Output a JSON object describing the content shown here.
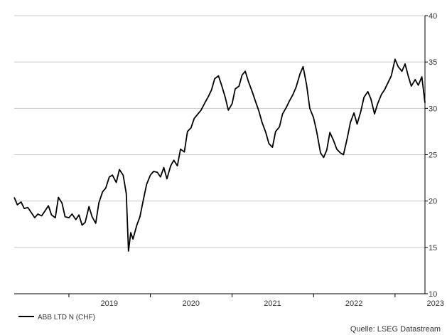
{
  "chart_data": {
    "type": "line",
    "title": "",
    "xlabel": "",
    "ylabel": "",
    "x_range": [
      "2018-05-01",
      "2023-05-15"
    ],
    "ylim": [
      10,
      40
    ],
    "y_ticks": [
      10,
      15,
      20,
      25,
      30,
      35,
      40
    ],
    "x_tick_labels": [
      "2019",
      "2020",
      "2021",
      "2022",
      "2023"
    ],
    "grid": true,
    "legend_position": "bottom-left",
    "source": "Quelle: LSEG Datastream",
    "colors": {
      "line": "#000000",
      "grid": "#c8c8c8",
      "axis": "#000000"
    },
    "series": [
      {
        "name": "ABB LTD N (CHF)",
        "points": [
          [
            "2018-05-01",
            20.4
          ],
          [
            "2018-05-15",
            19.6
          ],
          [
            "2018-06-01",
            19.9
          ],
          [
            "2018-06-15",
            19.2
          ],
          [
            "2018-07-01",
            19.3
          ],
          [
            "2018-07-15",
            18.8
          ],
          [
            "2018-08-01",
            18.2
          ],
          [
            "2018-08-15",
            18.6
          ],
          [
            "2018-09-01",
            18.4
          ],
          [
            "2018-09-15",
            18.9
          ],
          [
            "2018-10-01",
            19.5
          ],
          [
            "2018-10-15",
            18.5
          ],
          [
            "2018-11-01",
            18.2
          ],
          [
            "2018-11-15",
            20.4
          ],
          [
            "2018-12-01",
            19.8
          ],
          [
            "2018-12-15",
            18.3
          ],
          [
            "2019-01-01",
            18.2
          ],
          [
            "2019-01-15",
            18.6
          ],
          [
            "2019-02-01",
            18.0
          ],
          [
            "2019-02-15",
            18.5
          ],
          [
            "2019-03-01",
            17.4
          ],
          [
            "2019-03-15",
            17.7
          ],
          [
            "2019-04-01",
            19.4
          ],
          [
            "2019-04-15",
            18.3
          ],
          [
            "2019-05-01",
            17.6
          ],
          [
            "2019-05-15",
            19.8
          ],
          [
            "2019-06-01",
            21.0
          ],
          [
            "2019-06-15",
            21.4
          ],
          [
            "2019-07-01",
            22.6
          ],
          [
            "2019-07-15",
            22.8
          ],
          [
            "2019-08-01",
            22.0
          ],
          [
            "2019-08-15",
            23.4
          ],
          [
            "2019-09-01",
            22.8
          ],
          [
            "2019-09-15",
            20.8
          ],
          [
            "2019-09-25",
            14.6
          ],
          [
            "2019-10-05",
            16.6
          ],
          [
            "2019-10-15",
            15.9
          ],
          [
            "2019-11-01",
            17.4
          ],
          [
            "2019-11-15",
            18.3
          ],
          [
            "2019-12-01",
            20.2
          ],
          [
            "2019-12-15",
            21.8
          ],
          [
            "2020-01-01",
            22.8
          ],
          [
            "2020-01-15",
            23.2
          ],
          [
            "2020-02-01",
            23.1
          ],
          [
            "2020-02-15",
            22.6
          ],
          [
            "2020-03-01",
            23.6
          ],
          [
            "2020-03-15",
            22.4
          ],
          [
            "2020-04-01",
            23.8
          ],
          [
            "2020-04-15",
            24.4
          ],
          [
            "2020-05-01",
            23.8
          ],
          [
            "2020-05-15",
            25.6
          ],
          [
            "2020-06-01",
            25.3
          ],
          [
            "2020-06-15",
            27.5
          ],
          [
            "2020-07-01",
            27.9
          ],
          [
            "2020-07-15",
            28.9
          ],
          [
            "2020-08-01",
            29.4
          ],
          [
            "2020-08-15",
            29.8
          ],
          [
            "2020-09-01",
            30.6
          ],
          [
            "2020-09-15",
            31.2
          ],
          [
            "2020-10-01",
            32.0
          ],
          [
            "2020-10-15",
            33.2
          ],
          [
            "2020-11-01",
            33.5
          ],
          [
            "2020-11-15",
            32.5
          ],
          [
            "2020-12-01",
            31.2
          ],
          [
            "2020-12-15",
            29.8
          ],
          [
            "2021-01-01",
            30.5
          ],
          [
            "2021-01-15",
            32.1
          ],
          [
            "2021-02-01",
            32.4
          ],
          [
            "2021-02-15",
            33.6
          ],
          [
            "2021-03-01",
            34.0
          ],
          [
            "2021-03-15",
            32.9
          ],
          [
            "2021-04-01",
            31.8
          ],
          [
            "2021-04-15",
            30.8
          ],
          [
            "2021-05-01",
            29.7
          ],
          [
            "2021-05-15",
            28.5
          ],
          [
            "2021-06-01",
            27.4
          ],
          [
            "2021-06-15",
            26.2
          ],
          [
            "2021-07-01",
            25.8
          ],
          [
            "2021-07-15",
            27.5
          ],
          [
            "2021-08-01",
            28.0
          ],
          [
            "2021-08-15",
            29.4
          ],
          [
            "2021-09-01",
            30.1
          ],
          [
            "2021-09-15",
            30.8
          ],
          [
            "2021-10-01",
            31.5
          ],
          [
            "2021-10-15",
            32.3
          ],
          [
            "2021-11-01",
            33.7
          ],
          [
            "2021-11-15",
            34.5
          ],
          [
            "2021-12-01",
            32.5
          ],
          [
            "2021-12-15",
            30.0
          ],
          [
            "2022-01-01",
            29.0
          ],
          [
            "2022-01-15",
            27.5
          ],
          [
            "2022-02-01",
            25.2
          ],
          [
            "2022-02-15",
            24.7
          ],
          [
            "2022-03-01",
            25.5
          ],
          [
            "2022-03-15",
            27.4
          ],
          [
            "2022-04-01",
            26.5
          ],
          [
            "2022-04-15",
            25.6
          ],
          [
            "2022-05-01",
            25.2
          ],
          [
            "2022-05-15",
            25.0
          ],
          [
            "2022-06-01",
            26.8
          ],
          [
            "2022-06-15",
            28.5
          ],
          [
            "2022-07-01",
            29.5
          ],
          [
            "2022-07-15",
            28.3
          ],
          [
            "2022-08-01",
            29.7
          ],
          [
            "2022-08-15",
            31.2
          ],
          [
            "2022-09-01",
            31.8
          ],
          [
            "2022-09-15",
            31.0
          ],
          [
            "2022-10-01",
            29.4
          ],
          [
            "2022-10-15",
            30.5
          ],
          [
            "2022-11-01",
            31.5
          ],
          [
            "2022-11-15",
            32.0
          ],
          [
            "2022-12-01",
            32.8
          ],
          [
            "2022-12-15",
            33.5
          ],
          [
            "2023-01-01",
            35.3
          ],
          [
            "2023-01-15",
            34.5
          ],
          [
            "2023-02-01",
            34.0
          ],
          [
            "2023-02-15",
            34.8
          ],
          [
            "2023-03-01",
            33.5
          ],
          [
            "2023-03-15",
            32.4
          ],
          [
            "2023-04-01",
            33.1
          ],
          [
            "2023-04-15",
            32.5
          ],
          [
            "2023-05-01",
            33.4
          ],
          [
            "2023-05-15",
            30.6
          ]
        ]
      }
    ]
  }
}
